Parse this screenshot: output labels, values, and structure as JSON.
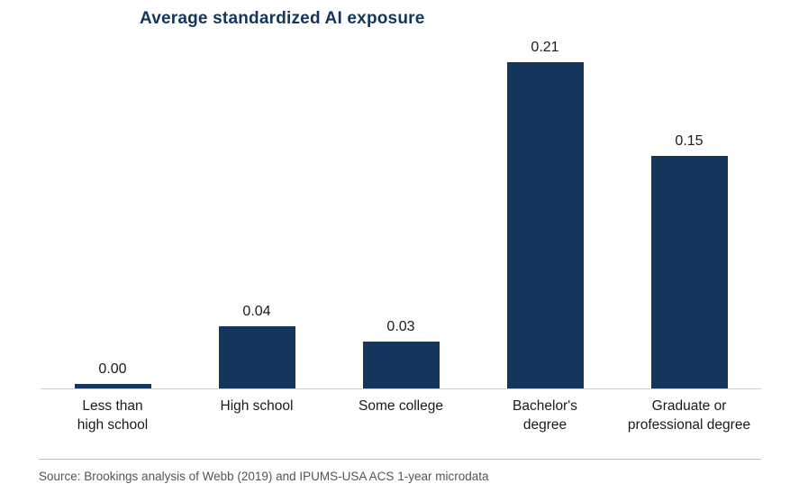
{
  "title": "Average standardized AI exposure",
  "source": "Source: Brookings analysis of Webb (2019) and IPUMS-USA ACS 1-year microdata",
  "colors": {
    "bar": "#14355c",
    "title": "#14355c",
    "value_label": "#1a1a1a",
    "axis_line": "#cfcfcf",
    "source_rule": "#bdbdbd",
    "source_text": "#555555"
  },
  "chart_data": {
    "type": "bar",
    "title": "Average standardized AI exposure",
    "categories": [
      "Less than\nhigh school",
      "High school",
      "Some college",
      "Bachelor's\ndegree",
      "Graduate or\nprofessional degree"
    ],
    "values": [
      0.0,
      0.04,
      0.03,
      0.21,
      0.15
    ],
    "value_labels": [
      "0.00",
      "0.04",
      "0.03",
      "0.21",
      "0.15"
    ],
    "xlabel": "",
    "ylabel": "",
    "ylim": [
      0,
      0.23
    ],
    "grid": false,
    "legend": false,
    "bar_color": "#14355c"
  }
}
